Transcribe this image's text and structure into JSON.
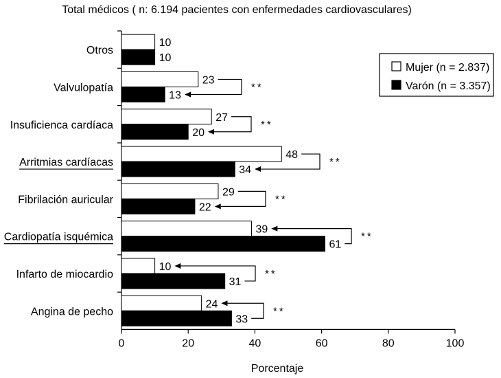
{
  "chart_data": {
    "type": "bar",
    "orientation": "horizontal",
    "title": "Total médicos ( n: 6.194 pacientes con enfermedades cardiovasculares)",
    "xlabel": "Porcentaje",
    "ylabel": "",
    "xlim": [
      0,
      100
    ],
    "xticks": [
      0,
      20,
      40,
      60,
      80,
      100
    ],
    "grid": false,
    "legend_position": "top-right",
    "categories": [
      "Otros",
      "Valvulopatía",
      "Insuficienca cardíaca",
      "Arritmias cardíacas",
      "Fibrilación auricular",
      "Cardiopatía isquémica",
      "Infarto de miocardio",
      "Angina de pecho"
    ],
    "underlined_category_indices": [
      3,
      5
    ],
    "series": [
      {
        "name": "Mujer (n = 2.837)",
        "color": "#ffffff",
        "values": [
          10,
          23,
          27,
          48,
          29,
          39,
          10,
          24
        ]
      },
      {
        "name": "Varón (n = 3.357)",
        "color": "#000000",
        "values": [
          10,
          13,
          20,
          34,
          22,
          61,
          31,
          33
        ]
      }
    ],
    "annotations": [
      {
        "category_index": 1,
        "text": "**",
        "arrow_to_series": 1
      },
      {
        "category_index": 2,
        "text": "**",
        "arrow_to_series": 1
      },
      {
        "category_index": 3,
        "text": "**",
        "arrow_to_series": 1
      },
      {
        "category_index": 4,
        "text": "**",
        "arrow_to_series": 1
      },
      {
        "category_index": 5,
        "text": "**",
        "arrow_to_series": 0
      },
      {
        "category_index": 6,
        "text": "**",
        "arrow_to_series": 0
      },
      {
        "category_index": 7,
        "text": "**",
        "arrow_to_series": 0
      }
    ]
  }
}
